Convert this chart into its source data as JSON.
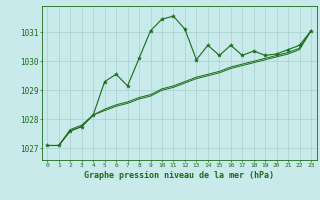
{
  "title": "Graphe pression niveau de la mer (hPa)",
  "bg_color": "#c8eaea",
  "grid_color": "#a8d0d0",
  "line_color": "#1a6b1a",
  "marker_color": "#1a6b1a",
  "x_labels": [
    "0",
    "1",
    "2",
    "3",
    "4",
    "5",
    "6",
    "7",
    "8",
    "9",
    "10",
    "11",
    "12",
    "13",
    "14",
    "15",
    "16",
    "17",
    "18",
    "19",
    "20",
    "21",
    "22",
    "23"
  ],
  "ylim": [
    1026.6,
    1031.9
  ],
  "yticks": [
    1027,
    1028,
    1029,
    1030,
    1031
  ],
  "main_line": [
    1027.1,
    1027.1,
    1027.6,
    1027.75,
    1028.15,
    1029.3,
    1029.55,
    1029.15,
    1030.1,
    1031.05,
    1031.45,
    1031.55,
    1031.1,
    1030.05,
    1030.55,
    1030.2,
    1030.55,
    1030.2,
    1030.35,
    1030.2,
    1030.25,
    1030.4,
    1030.55,
    1031.05
  ],
  "line2": [
    1027.1,
    1027.1,
    1027.6,
    1027.75,
    1028.15,
    1028.35,
    1028.5,
    1028.6,
    1028.75,
    1028.85,
    1029.05,
    1029.15,
    1029.3,
    1029.45,
    1029.55,
    1029.65,
    1029.8,
    1029.9,
    1030.0,
    1030.1,
    1030.2,
    1030.3,
    1030.45,
    1031.05
  ],
  "line3": [
    1027.1,
    1027.1,
    1027.65,
    1027.8,
    1028.15,
    1028.3,
    1028.45,
    1028.55,
    1028.7,
    1028.8,
    1029.0,
    1029.1,
    1029.25,
    1029.4,
    1029.5,
    1029.6,
    1029.75,
    1029.85,
    1029.95,
    1030.05,
    1030.15,
    1030.25,
    1030.4,
    1031.05
  ]
}
